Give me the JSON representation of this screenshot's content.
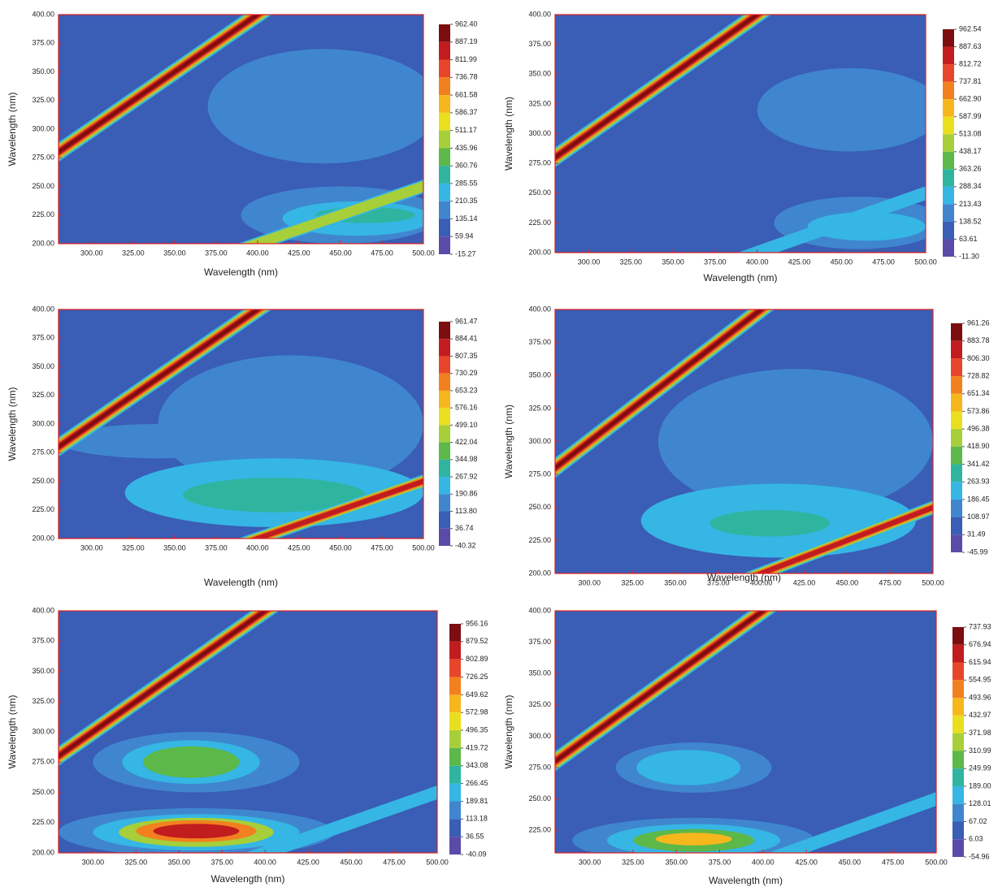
{
  "chart_data": [
    {
      "type": "contour",
      "xlabel": "Wavelength (nm)",
      "ylabel": "Wavelength (nm)",
      "xlim": [
        280,
        500
      ],
      "ylim": [
        200,
        400
      ],
      "xticks": [
        {
          "value": 300,
          "label": "300.00"
        },
        {
          "value": 325,
          "label": "325.00"
        },
        {
          "value": 350,
          "label": "350.00"
        },
        {
          "value": 375,
          "label": "375.00"
        },
        {
          "value": 400,
          "label": "400.00"
        },
        {
          "value": 425,
          "label": "425.00"
        },
        {
          "value": 450,
          "label": "450.00"
        },
        {
          "value": 475,
          "label": "475.00"
        },
        {
          "value": 500,
          "label": "500.00"
        }
      ],
      "yticks": [
        {
          "value": 200,
          "label": "200.00"
        },
        {
          "value": 225,
          "label": "225.00"
        },
        {
          "value": 250,
          "label": "250.00"
        },
        {
          "value": 275,
          "label": "275.00"
        },
        {
          "value": 300,
          "label": "300.00"
        },
        {
          "value": 325,
          "label": "325.00"
        },
        {
          "value": 350,
          "label": "350.00"
        },
        {
          "value": 375,
          "label": "375.00"
        },
        {
          "value": 400,
          "label": "400.00"
        }
      ],
      "colorbar_ticks": [
        {
          "value": 962.4,
          "label": "962.40"
        },
        887.19,
        811.99,
        736.78,
        661.58,
        586.37,
        511.17,
        435.96,
        360.76,
        285.55,
        210.35,
        135.14,
        59.94,
        -15.27
      ]
    },
    {
      "type": "contour",
      "xlabel": "Wavelength (nm)",
      "ylabel": "Wavelength (nm)",
      "xlim": [
        280,
        500
      ],
      "ylim": [
        200,
        400
      ],
      "xticks": [
        {
          "value": 300,
          "label": "300.00"
        },
        {
          "value": 325,
          "label": "325.00"
        },
        {
          "value": 350,
          "label": "350.00"
        },
        {
          "value": 375,
          "label": "375.00"
        },
        {
          "value": 400,
          "label": "400.00"
        },
        {
          "value": 425,
          "label": "425.00"
        },
        {
          "value": 450,
          "label": "450.00"
        },
        {
          "value": 475,
          "label": "475.00"
        },
        {
          "value": 500,
          "label": "500.00"
        }
      ],
      "yticks": [
        {
          "value": 200,
          "label": "200.00"
        },
        {
          "value": 225,
          "label": "225.00"
        },
        {
          "value": 250,
          "label": "250.00"
        },
        {
          "value": 275,
          "label": "275.00"
        },
        {
          "value": 300,
          "label": "300.00"
        },
        {
          "value": 325,
          "label": "325.00"
        },
        {
          "value": 350,
          "label": "350.00"
        },
        {
          "value": 375,
          "label": "375.00"
        },
        {
          "value": 400,
          "label": "400.00"
        }
      ],
      "colorbar_ticks": [
        962.54,
        887.63,
        812.72,
        737.81,
        {
          "value": 662.9,
          "label": "662.90"
        },
        587.99,
        513.08,
        438.17,
        363.26,
        288.34,
        213.43,
        138.52,
        63.61,
        {
          "value": -11.3,
          "label": "-11.30"
        }
      ]
    },
    {
      "type": "contour",
      "xlabel": "Wavelength (nm)",
      "ylabel": "Wavelength (nm)",
      "xlim": [
        280,
        500
      ],
      "ylim": [
        200,
        400
      ],
      "xticks": [
        {
          "value": 300,
          "label": "300.00"
        },
        {
          "value": 325,
          "label": "325.00"
        },
        {
          "value": 350,
          "label": "350.00"
        },
        {
          "value": 375,
          "label": "375.00"
        },
        {
          "value": 400,
          "label": "400.00"
        },
        {
          "value": 425,
          "label": "425.00"
        },
        {
          "value": 450,
          "label": "450.00"
        },
        {
          "value": 475,
          "label": "475.00"
        },
        {
          "value": 500,
          "label": "500.00"
        }
      ],
      "yticks": [
        {
          "value": 200,
          "label": "200.00"
        },
        {
          "value": 225,
          "label": "225.00"
        },
        {
          "value": 250,
          "label": "250.00"
        },
        {
          "value": 275,
          "label": "275.00"
        },
        {
          "value": 300,
          "label": "300.00"
        },
        {
          "value": 325,
          "label": "325.00"
        },
        {
          "value": 350,
          "label": "350.00"
        },
        {
          "value": 375,
          "label": "375.00"
        },
        {
          "value": 400,
          "label": "400.00"
        }
      ],
      "colorbar_ticks": [
        961.47,
        884.41,
        807.35,
        730.29,
        653.23,
        576.16,
        {
          "value": 499.1,
          "label": "499.10"
        },
        422.04,
        344.98,
        267.92,
        190.86,
        {
          "value": 113.8,
          "label": "113.80"
        },
        36.74,
        -40.32
      ]
    },
    {
      "type": "contour",
      "xlabel": "Wavelength (nm)",
      "ylabel": "Wavelength (nm)",
      "xlim": [
        280,
        500
      ],
      "ylim": [
        200,
        400
      ],
      "xticks": [
        {
          "value": 300,
          "label": "300.00"
        },
        {
          "value": 325,
          "label": "325.00"
        },
        {
          "value": 350,
          "label": "350.00"
        },
        {
          "value": 375,
          "label": "375.00"
        },
        {
          "value": 400,
          "label": "400.00"
        },
        {
          "value": 425,
          "label": "425.00"
        },
        {
          "value": 450,
          "label": "450.00"
        },
        {
          "value": 475,
          "label": "475.00"
        },
        {
          "value": 500,
          "label": "500.00"
        }
      ],
      "yticks": [
        {
          "value": 200,
          "label": "200.00"
        },
        {
          "value": 225,
          "label": "225.00"
        },
        {
          "value": 250,
          "label": "250.00"
        },
        {
          "value": 275,
          "label": "275.00"
        },
        {
          "value": 300,
          "label": "300.00"
        },
        {
          "value": 325,
          "label": "325.00"
        },
        {
          "value": 350,
          "label": "350.00"
        },
        {
          "value": 375,
          "label": "375.00"
        },
        {
          "value": 400,
          "label": "400.00"
        }
      ],
      "colorbar_ticks": [
        961.26,
        883.78,
        {
          "value": 806.3,
          "label": "806.30"
        },
        728.82,
        651.34,
        573.86,
        496.38,
        {
          "value": 418.9,
          "label": "418.90"
        },
        341.42,
        263.93,
        186.45,
        108.97,
        31.49,
        -45.99
      ]
    },
    {
      "type": "contour",
      "xlabel": "Wavelength (nm)",
      "ylabel": "Wavelength (nm)",
      "xlim": [
        280,
        500
      ],
      "ylim": [
        200,
        400
      ],
      "xticks": [
        {
          "value": 300,
          "label": "300.00"
        },
        {
          "value": 325,
          "label": "325.00"
        },
        {
          "value": 350,
          "label": "350.00"
        },
        {
          "value": 375,
          "label": "375.00"
        },
        {
          "value": 400,
          "label": "400.00"
        },
        {
          "value": 425,
          "label": "425.00"
        },
        {
          "value": 450,
          "label": "450.00"
        },
        {
          "value": 475,
          "label": "475.00"
        },
        {
          "value": 500,
          "label": "500.00"
        }
      ],
      "yticks": [
        {
          "value": 200,
          "label": "200.00"
        },
        {
          "value": 225,
          "label": "225.00"
        },
        {
          "value": 250,
          "label": "250.00"
        },
        {
          "value": 275,
          "label": "275.00"
        },
        {
          "value": 300,
          "label": "300.00"
        },
        {
          "value": 325,
          "label": "325.00"
        },
        {
          "value": 350,
          "label": "350.00"
        },
        {
          "value": 375,
          "label": "375.00"
        },
        {
          "value": 400,
          "label": "400.00"
        }
      ],
      "colorbar_ticks": [
        956.16,
        879.52,
        802.89,
        726.25,
        649.62,
        572.98,
        496.35,
        419.72,
        343.08,
        266.45,
        189.81,
        113.18,
        36.55,
        -40.09
      ]
    },
    {
      "type": "contour",
      "xlabel": "Wavelength (nm)",
      "ylabel": "Wavelength (nm)",
      "xlim": [
        280,
        500
      ],
      "ylim": [
        207,
        400
      ],
      "xticks": [
        {
          "value": 300,
          "label": "300.00"
        },
        {
          "value": 325,
          "label": "325.00"
        },
        {
          "value": 350,
          "label": "350.00"
        },
        {
          "value": 375,
          "label": "375.00"
        },
        {
          "value": 400,
          "label": "400.00"
        },
        {
          "value": 425,
          "label": "425.00"
        },
        {
          "value": 450,
          "label": "450.00"
        },
        {
          "value": 475,
          "label": "475.00"
        },
        {
          "value": 500,
          "label": "500.00"
        }
      ],
      "yticks": [
        {
          "value": 225,
          "label": "225.00"
        },
        {
          "value": 250,
          "label": "250.00"
        },
        {
          "value": 275,
          "label": "275.00"
        },
        {
          "value": 300,
          "label": "300.00"
        },
        {
          "value": 325,
          "label": "325.00"
        },
        {
          "value": 350,
          "label": "350.00"
        },
        {
          "value": 375,
          "label": "375.00"
        },
        {
          "value": 400,
          "label": "400.00"
        }
      ],
      "colorbar_ticks": [
        737.93,
        676.94,
        615.94,
        554.95,
        493.96,
        432.97,
        371.98,
        310.99,
        249.99,
        {
          "value": 189,
          "label": "189.00"
        },
        128.01,
        67.02,
        6.03,
        -54.96
      ]
    }
  ],
  "colors": [
    "#5b4ba8",
    "#3a5db5",
    "#3f86cf",
    "#35b6e4",
    "#2fb4a0",
    "#5cb848",
    "#a6cf3a",
    "#eadf1f",
    "#f6b71d",
    "#f2801f",
    "#e8462a",
    "#c11d1f",
    "#7c0d10"
  ]
}
